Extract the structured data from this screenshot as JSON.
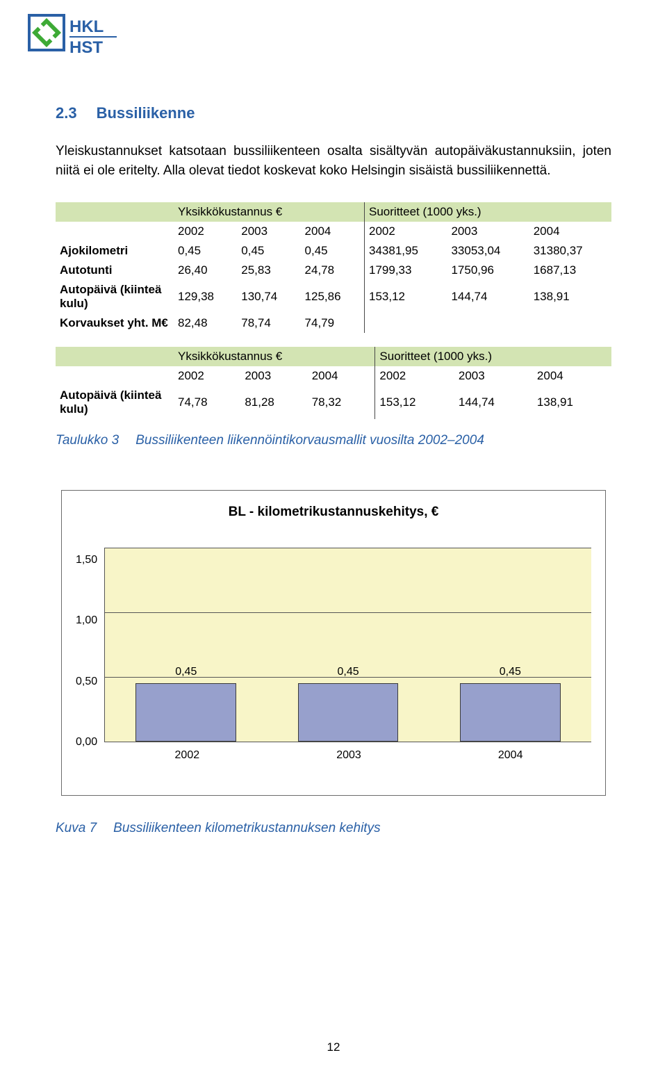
{
  "logo": {
    "top_text": "HKL",
    "bottom_text": "HST",
    "green": "#3daa35",
    "blue": "#2a60a6",
    "text_color": "#2a60a6"
  },
  "heading": {
    "number": "2.3",
    "title": "Bussiliikenne",
    "color": "#2a60a6"
  },
  "paragraph": "Yleiskustannukset katsotaan bussiliikenteen osalta sisältyvän autopäiväkustannuksiin, joten niitä ei ole eritelty. Alla olevat tiedot koskevat koko Helsingin sisäistä bussiliikennettä.",
  "table1": {
    "group_headers": [
      "Yksikkökustannus €",
      "Suoritteet (1000 yks.)"
    ],
    "years": [
      "2002",
      "2003",
      "2004",
      "2002",
      "2003",
      "2004"
    ],
    "rows": [
      {
        "label": "Ajokilometri",
        "cells": [
          "0,45",
          "0,45",
          "0,45",
          "34381,95",
          "33053,04",
          "31380,37"
        ]
      },
      {
        "label": "Autotunti",
        "cells": [
          "26,40",
          "25,83",
          "24,78",
          "1799,33",
          "1750,96",
          "1687,13"
        ]
      },
      {
        "label": "Autopäivä (kiinteä kulu)",
        "cells": [
          "129,38",
          "130,74",
          "125,86",
          "153,12",
          "144,74",
          "138,91"
        ]
      },
      {
        "label": "Korvaukset yht. M€",
        "cells": [
          "82,48",
          "78,74",
          "74,79",
          "",
          "",
          ""
        ]
      }
    ],
    "header_bg": "#d3e4b3"
  },
  "table2": {
    "group_headers": [
      "Yksikkökustannus €",
      "Suoritteet (1000 yks.)"
    ],
    "years": [
      "2002",
      "2003",
      "2004",
      "2002",
      "2003",
      "2004"
    ],
    "rows": [
      {
        "label": "Autopäivä (kiinteä kulu)",
        "cells": [
          "74,78",
          "81,28",
          "78,32",
          "153,12",
          "144,74",
          "138,91"
        ]
      }
    ],
    "header_bg": "#d3e4b3"
  },
  "table_caption": {
    "label": "Taulukko 3",
    "text": "Bussiliikenteen liikennöintikorvausmallit vuosilta 2002–2004",
    "color": "#2a60a6"
  },
  "chart": {
    "type": "bar",
    "title": "BL - kilometrikustannuskehitys, €",
    "categories": [
      "2002",
      "2003",
      "2004"
    ],
    "values": [
      0.45,
      0.45,
      0.45
    ],
    "value_labels": [
      "0,45",
      "0,45",
      "0,45"
    ],
    "ylim": [
      0.0,
      1.5
    ],
    "yticks": [
      "1,50",
      "1,00",
      "0,50",
      "0,00"
    ],
    "ytick_values": [
      1.5,
      1.0,
      0.5,
      0.0
    ],
    "plot_bg": "#f8f5c8",
    "bar_color": "#97a0cc",
    "bar_border": "#3a3a3a",
    "grid_color": "#555555",
    "bar_width": 0.62,
    "title_fontsize": 19,
    "label_fontsize": 16
  },
  "chart_caption": {
    "label": "Kuva 7",
    "text": "Bussiliikenteen kilometrikustannuksen kehitys",
    "color": "#2a60a6"
  },
  "page_number": "12"
}
